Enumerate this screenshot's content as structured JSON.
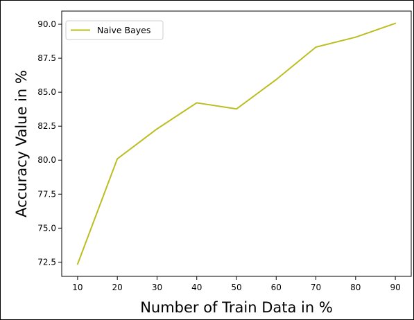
{
  "chart_data": {
    "type": "line",
    "x": [
      10,
      20,
      30,
      40,
      50,
      60,
      70,
      80,
      90
    ],
    "series": [
      {
        "name": "Naive Bayes",
        "color": "#bcbd22",
        "values": [
          72.35,
          80.1,
          82.3,
          84.22,
          83.77,
          85.93,
          88.32,
          89.05,
          90.07
        ]
      }
    ],
    "xlabel": "Number of Train Data in %",
    "ylabel": "Accuracy Value in %",
    "xticks": [
      10,
      20,
      30,
      40,
      50,
      60,
      70,
      80,
      90
    ],
    "yticks": [
      "72.5",
      "75.0",
      "77.5",
      "80.0",
      "82.5",
      "85.0",
      "87.5",
      "90.0"
    ],
    "xlim": [
      6,
      94
    ],
    "ylim": [
      71.45,
      90.97
    ],
    "grid": false,
    "legend_position": "top-left"
  }
}
